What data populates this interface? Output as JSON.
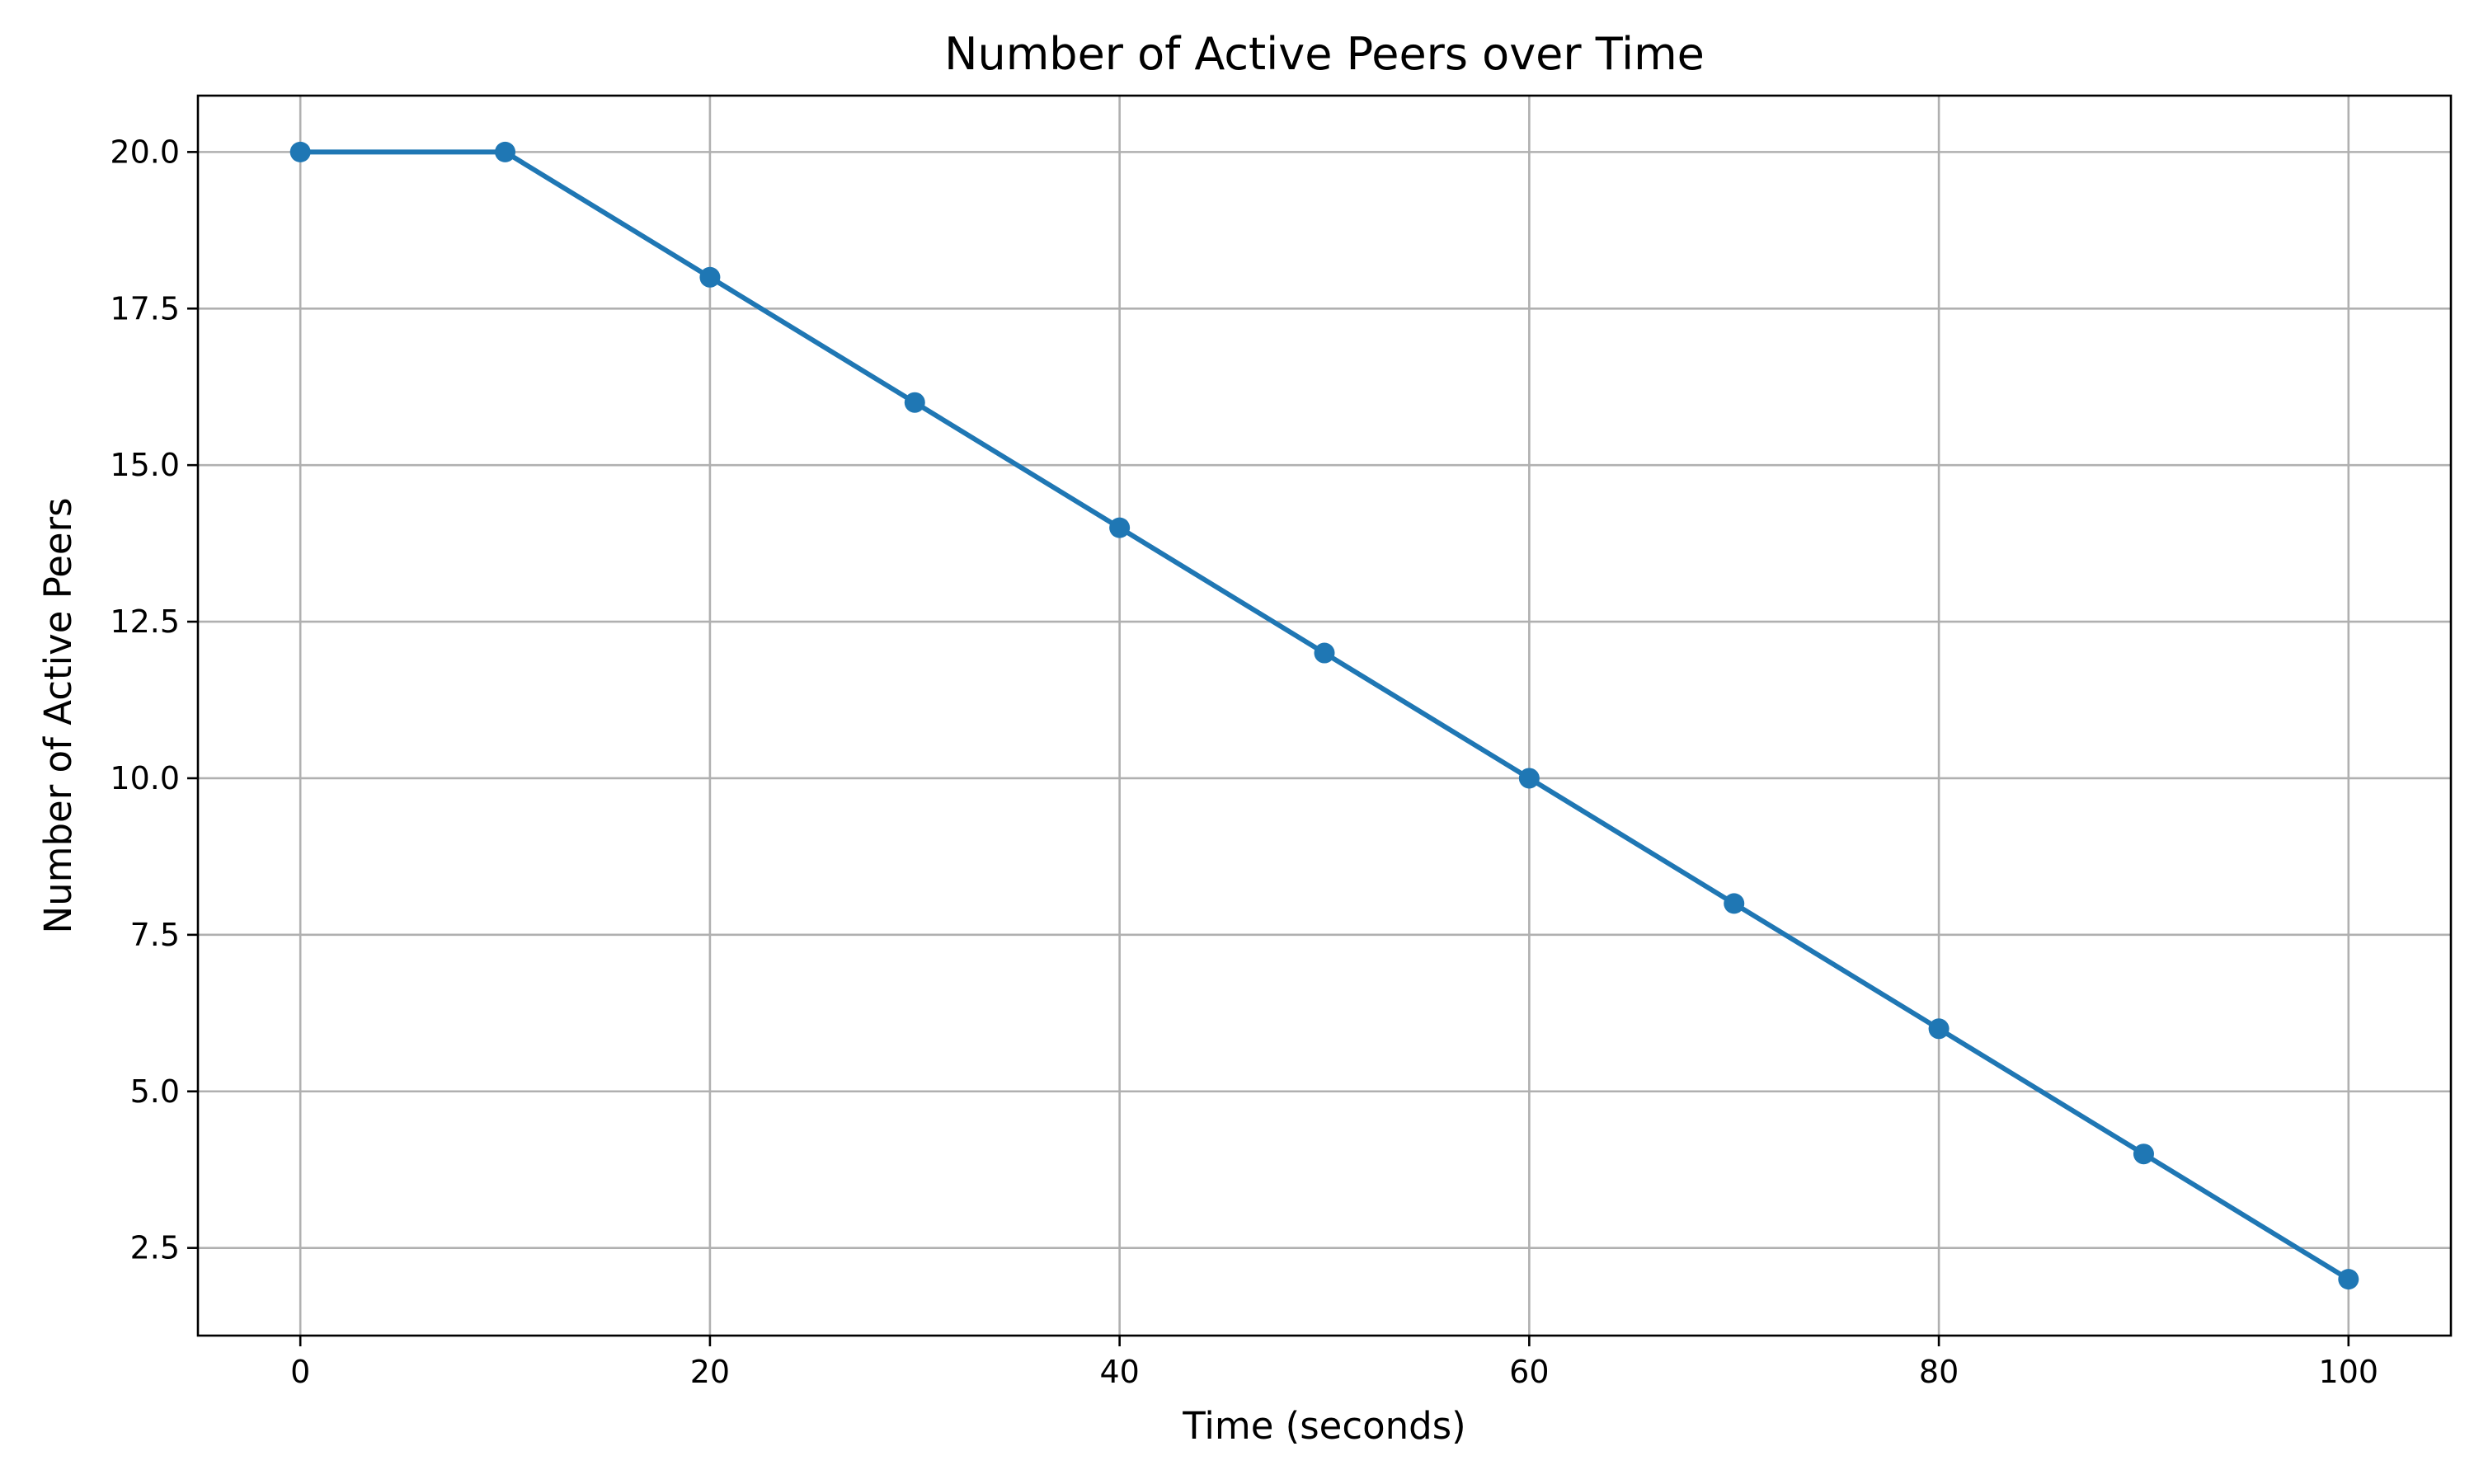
{
  "chart_data": {
    "type": "line",
    "title": "Number of Active Peers over Time",
    "xlabel": "Time (seconds)",
    "ylabel": "Number of Active Peers",
    "xlim": [
      -5,
      105
    ],
    "ylim": [
      1.1,
      20.9
    ],
    "x_ticks": [
      0,
      20,
      40,
      60,
      80,
      100
    ],
    "x_tick_labels": [
      "0",
      "20",
      "40",
      "60",
      "80",
      "100"
    ],
    "y_ticks": [
      2.5,
      5.0,
      7.5,
      10.0,
      12.5,
      15.0,
      17.5,
      20.0
    ],
    "y_tick_labels": [
      "2.5",
      "5.0",
      "7.5",
      "10.0",
      "12.5",
      "15.0",
      "17.5",
      "20.0"
    ],
    "grid": true,
    "series": [
      {
        "color": "#1f77b4",
        "marker": "circle",
        "x": [
          0,
          10,
          20,
          30,
          40,
          50,
          60,
          70,
          80,
          90,
          100
        ],
        "y": [
          20,
          20,
          18,
          16,
          14,
          12,
          10,
          8,
          6,
          4,
          2
        ]
      }
    ]
  }
}
